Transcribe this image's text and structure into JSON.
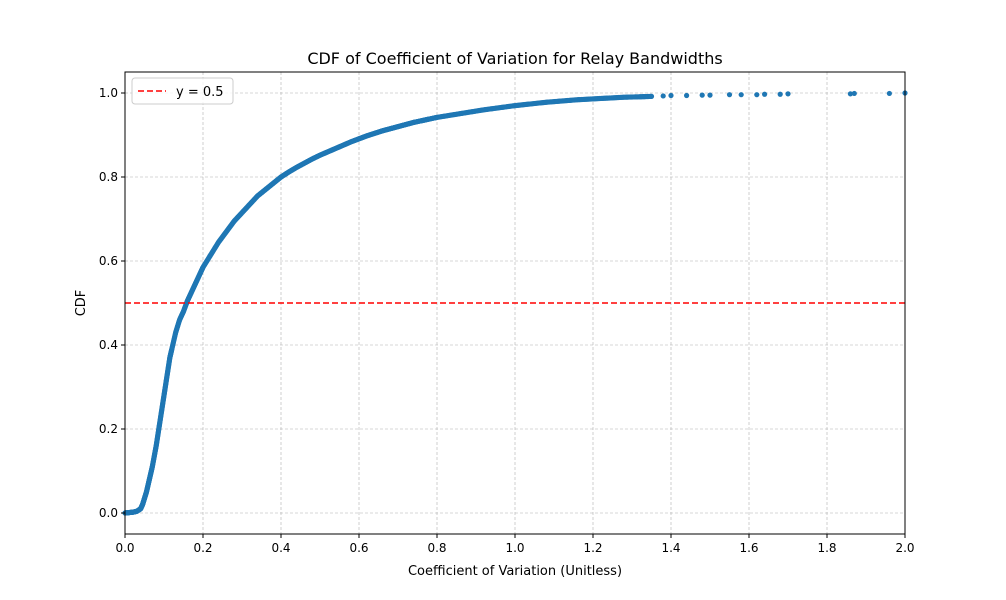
{
  "chart_data": {
    "type": "scatter",
    "title": "CDF of Coefficient of Variation for Relay Bandwidths",
    "xlabel": "Coefficient of Variation (Unitless)",
    "ylabel": "CDF",
    "xlim": [
      0.0,
      2.0
    ],
    "ylim": [
      -0.05,
      1.05
    ],
    "grid": true,
    "legend_position": "upper-left",
    "x_ticks": [
      0.0,
      0.2,
      0.4,
      0.6,
      0.8,
      1.0,
      1.2,
      1.4,
      1.6,
      1.8,
      2.0
    ],
    "x_tick_labels": [
      "0.0",
      "0.2",
      "0.4",
      "0.6",
      "0.8",
      "1.0",
      "1.2",
      "1.4",
      "1.6",
      "1.8",
      "2.0"
    ],
    "y_ticks": [
      0.0,
      0.2,
      0.4,
      0.6,
      0.8,
      1.0
    ],
    "y_tick_labels": [
      "0.0",
      "0.2",
      "0.4",
      "0.6",
      "0.8",
      "1.0"
    ],
    "series": [
      {
        "marker": "dot",
        "color": "#1f77b4",
        "points": [
          [
            0.0,
            0.0
          ],
          [
            0.01,
            0.001
          ],
          [
            0.02,
            0.002
          ],
          [
            0.03,
            0.004
          ],
          [
            0.04,
            0.01
          ],
          [
            0.045,
            0.02
          ],
          [
            0.05,
            0.035
          ],
          [
            0.055,
            0.05
          ],
          [
            0.06,
            0.07
          ],
          [
            0.065,
            0.09
          ],
          [
            0.07,
            0.11
          ],
          [
            0.075,
            0.135
          ],
          [
            0.08,
            0.16
          ],
          [
            0.085,
            0.19
          ],
          [
            0.09,
            0.22
          ],
          [
            0.095,
            0.25
          ],
          [
            0.1,
            0.28
          ],
          [
            0.105,
            0.31
          ],
          [
            0.11,
            0.34
          ],
          [
            0.115,
            0.37
          ],
          [
            0.12,
            0.39
          ],
          [
            0.13,
            0.43
          ],
          [
            0.14,
            0.46
          ],
          [
            0.15,
            0.48
          ],
          [
            0.16,
            0.505
          ],
          [
            0.17,
            0.525
          ],
          [
            0.18,
            0.545
          ],
          [
            0.19,
            0.565
          ],
          [
            0.2,
            0.585
          ],
          [
            0.22,
            0.615
          ],
          [
            0.24,
            0.645
          ],
          [
            0.26,
            0.67
          ],
          [
            0.28,
            0.695
          ],
          [
            0.3,
            0.715
          ],
          [
            0.32,
            0.735
          ],
          [
            0.34,
            0.755
          ],
          [
            0.36,
            0.77
          ],
          [
            0.38,
            0.785
          ],
          [
            0.4,
            0.8
          ],
          [
            0.42,
            0.812
          ],
          [
            0.44,
            0.823
          ],
          [
            0.46,
            0.833
          ],
          [
            0.48,
            0.843
          ],
          [
            0.5,
            0.852
          ],
          [
            0.52,
            0.86
          ],
          [
            0.54,
            0.868
          ],
          [
            0.56,
            0.876
          ],
          [
            0.58,
            0.884
          ],
          [
            0.6,
            0.891
          ],
          [
            0.62,
            0.898
          ],
          [
            0.64,
            0.904
          ],
          [
            0.66,
            0.91
          ],
          [
            0.68,
            0.915
          ],
          [
            0.7,
            0.92
          ],
          [
            0.72,
            0.925
          ],
          [
            0.74,
            0.93
          ],
          [
            0.76,
            0.934
          ],
          [
            0.78,
            0.938
          ],
          [
            0.8,
            0.942
          ],
          [
            0.84,
            0.948
          ],
          [
            0.88,
            0.954
          ],
          [
            0.92,
            0.96
          ],
          [
            0.96,
            0.965
          ],
          [
            1.0,
            0.97
          ],
          [
            1.04,
            0.974
          ],
          [
            1.08,
            0.978
          ],
          [
            1.12,
            0.981
          ],
          [
            1.16,
            0.984
          ],
          [
            1.2,
            0.986
          ],
          [
            1.24,
            0.988
          ],
          [
            1.28,
            0.99
          ],
          [
            1.32,
            0.991
          ],
          [
            1.35,
            0.992
          ],
          [
            1.38,
            0.993
          ],
          [
            1.4,
            0.994
          ],
          [
            1.44,
            0.994
          ],
          [
            1.48,
            0.995
          ],
          [
            1.5,
            0.995
          ],
          [
            1.55,
            0.996
          ],
          [
            1.58,
            0.996
          ],
          [
            1.62,
            0.996
          ],
          [
            1.64,
            0.997
          ],
          [
            1.68,
            0.997
          ],
          [
            1.7,
            0.998
          ],
          [
            1.86,
            0.998
          ],
          [
            1.87,
            0.999
          ],
          [
            1.96,
            0.999
          ],
          [
            2.0,
            1.0
          ]
        ]
      }
    ],
    "reference_lines": [
      {
        "axis": "y",
        "value": 0.5,
        "label": "y = 0.5",
        "color": "#ff0000",
        "style": "dashed"
      }
    ]
  }
}
